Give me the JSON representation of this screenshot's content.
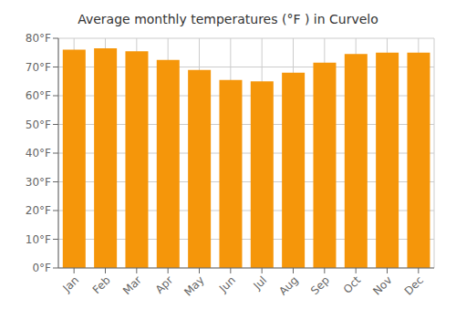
{
  "chart_data": {
    "type": "bar",
    "title": "Average monthly temperatures (°F ) in Curvelo",
    "categories": [
      "Jan",
      "Feb",
      "Mar",
      "Apr",
      "May",
      "Jun",
      "Jul",
      "Aug",
      "Sep",
      "Oct",
      "Nov",
      "Dec"
    ],
    "values": [
      76,
      76.5,
      75.5,
      72.5,
      69,
      65.5,
      65,
      68,
      71.5,
      74.5,
      75,
      75
    ],
    "color": "#F5960A",
    "ylim": [
      0,
      80
    ],
    "yticks": [
      {
        "value": 0,
        "label": "0°F"
      },
      {
        "value": 10,
        "label": "10°F"
      },
      {
        "value": 20,
        "label": "20°F"
      },
      {
        "value": 30,
        "label": "30°F"
      },
      {
        "value": 40,
        "label": "40°F"
      },
      {
        "value": 50,
        "label": "50°F"
      },
      {
        "value": 60,
        "label": "60°F"
      },
      {
        "value": 70,
        "label": "70°F"
      },
      {
        "value": 80,
        "label": "80°F"
      }
    ],
    "grid": true
  }
}
